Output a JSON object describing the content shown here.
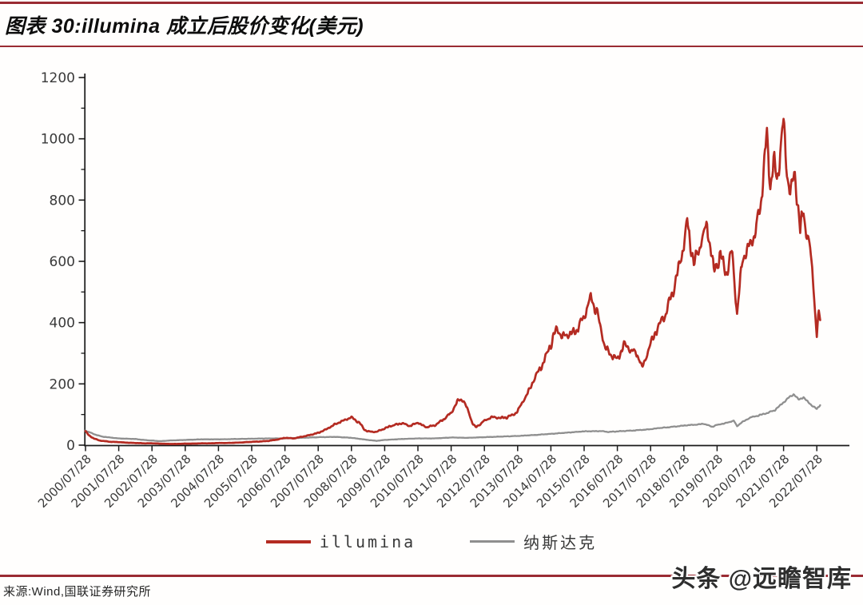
{
  "header": {
    "title": "图表 30:illumina 成立后股价变化(美元)"
  },
  "colors": {
    "accent_rule": "#9a2b33",
    "illumina_line": "#b42b22",
    "nasdaq_line": "#8f8f8f",
    "axis": "#1a1a1a",
    "tick_label": "#3a3a3a"
  },
  "chart_data": {
    "type": "line",
    "title": "图表 30:illumina 成立后股价变化(美元)",
    "xlabel": "",
    "ylabel": "",
    "grid": false,
    "legend_position": "bottom-center",
    "ylim": [
      0,
      1200
    ],
    "yticks": [
      0,
      200,
      400,
      600,
      800,
      1000,
      1200
    ],
    "y_minor_step": 100,
    "x_tick_labels": [
      "2000/07/28",
      "2001/07/28",
      "2002/07/28",
      "2003/07/28",
      "2004/07/28",
      "2005/07/28",
      "2006/07/28",
      "2007/07/28",
      "2008/07/28",
      "2009/07/28",
      "2010/07/28",
      "2011/07/28",
      "2012/07/28",
      "2013/07/28",
      "2014/07/28",
      "2015/07/28",
      "2016/07/28",
      "2017/07/28",
      "2018/07/28",
      "2019/07/28",
      "2020/07/28",
      "2021/07/28",
      "2022/07/28"
    ],
    "x_unit": "years since 2000/07/28",
    "x_range": [
      0,
      22.1
    ],
    "legend": [
      {
        "name": "illumina",
        "color": "#b42b22"
      },
      {
        "name": "纳斯达克",
        "color": "#8f8f8f"
      }
    ],
    "series": [
      {
        "name": "纳斯达克",
        "color": "#8f8f8f",
        "width": 2.3,
        "noise_amp": 0.011,
        "seed": 13,
        "points": [
          [
            0,
            48
          ],
          [
            0.25,
            36
          ],
          [
            0.5,
            28
          ],
          [
            0.75,
            25
          ],
          [
            1,
            22
          ],
          [
            1.5,
            20
          ],
          [
            1.75,
            17
          ],
          [
            2,
            15
          ],
          [
            2.25,
            13
          ],
          [
            2.5,
            15
          ],
          [
            3,
            17
          ],
          [
            3.5,
            19
          ],
          [
            4,
            19
          ],
          [
            4.5,
            20
          ],
          [
            5,
            21
          ],
          [
            5.5,
            22
          ],
          [
            6,
            22
          ],
          [
            6.5,
            24
          ],
          [
            7,
            26
          ],
          [
            7.5,
            27
          ],
          [
            8,
            24
          ],
          [
            8.5,
            17
          ],
          [
            8.75,
            14
          ],
          [
            9,
            17
          ],
          [
            9.5,
            20
          ],
          [
            10,
            22
          ],
          [
            10.5,
            22
          ],
          [
            11,
            25
          ],
          [
            11.5,
            24
          ],
          [
            12,
            26
          ],
          [
            12.5,
            28
          ],
          [
            13,
            30
          ],
          [
            13.5,
            33
          ],
          [
            14,
            37
          ],
          [
            14.5,
            41
          ],
          [
            15,
            45
          ],
          [
            15.5,
            46
          ],
          [
            15.75,
            43
          ],
          [
            16,
            45
          ],
          [
            16.5,
            48
          ],
          [
            17,
            52
          ],
          [
            17.25,
            56
          ],
          [
            17.5,
            58
          ],
          [
            18,
            64
          ],
          [
            18.5,
            68
          ],
          [
            18.6,
            70
          ],
          [
            18.85,
            60
          ],
          [
            19,
            66
          ],
          [
            19.25,
            72
          ],
          [
            19.5,
            80
          ],
          [
            19.6,
            62
          ],
          [
            19.75,
            75
          ],
          [
            20,
            90
          ],
          [
            20.25,
            97
          ],
          [
            20.5,
            105
          ],
          [
            20.75,
            115
          ],
          [
            21,
            140
          ],
          [
            21.15,
            155
          ],
          [
            21.3,
            165
          ],
          [
            21.45,
            150
          ],
          [
            21.6,
            155
          ],
          [
            21.75,
            140
          ],
          [
            21.9,
            125
          ],
          [
            22,
            118
          ],
          [
            22.05,
            126
          ],
          [
            22.1,
            130
          ]
        ]
      },
      {
        "name": "illumina",
        "color": "#b42b22",
        "width": 2.7,
        "noise_amp": 0.024,
        "seed": 7,
        "points": [
          [
            0,
            45
          ],
          [
            0.1,
            32
          ],
          [
            0.25,
            22
          ],
          [
            0.4,
            16
          ],
          [
            0.5,
            14
          ],
          [
            0.75,
            11
          ],
          [
            1,
            10
          ],
          [
            1.25,
            8
          ],
          [
            1.5,
            7
          ],
          [
            1.75,
            6
          ],
          [
            2,
            6
          ],
          [
            2.25,
            5
          ],
          [
            2.5,
            4
          ],
          [
            2.75,
            4
          ],
          [
            3,
            5
          ],
          [
            3.25,
            5
          ],
          [
            3.5,
            6
          ],
          [
            3.75,
            6
          ],
          [
            4,
            7
          ],
          [
            4.25,
            7
          ],
          [
            4.5,
            8
          ],
          [
            4.75,
            9
          ],
          [
            5,
            11
          ],
          [
            5.25,
            12
          ],
          [
            5.5,
            14
          ],
          [
            5.75,
            18
          ],
          [
            6,
            24
          ],
          [
            6.25,
            22
          ],
          [
            6.5,
            27
          ],
          [
            6.75,
            33
          ],
          [
            7,
            40
          ],
          [
            7.25,
            52
          ],
          [
            7.5,
            68
          ],
          [
            7.75,
            80
          ],
          [
            8,
            90
          ],
          [
            8.25,
            72
          ],
          [
            8.4,
            50
          ],
          [
            8.5,
            45
          ],
          [
            8.75,
            43
          ],
          [
            9,
            55
          ],
          [
            9.25,
            65
          ],
          [
            9.5,
            72
          ],
          [
            9.75,
            62
          ],
          [
            10,
            74
          ],
          [
            10.25,
            58
          ],
          [
            10.5,
            64
          ],
          [
            10.75,
            82
          ],
          [
            11,
            105
          ],
          [
            11.2,
            145
          ],
          [
            11.35,
            150
          ],
          [
            11.5,
            115
          ],
          [
            11.65,
            70
          ],
          [
            11.75,
            58
          ],
          [
            12,
            80
          ],
          [
            12.25,
            92
          ],
          [
            12.5,
            88
          ],
          [
            12.75,
            93
          ],
          [
            13,
            110
          ],
          [
            13.25,
            160
          ],
          [
            13.5,
            215
          ],
          [
            13.75,
            265
          ],
          [
            14,
            330
          ],
          [
            14.2,
            385
          ],
          [
            14.35,
            350
          ],
          [
            14.5,
            360
          ],
          [
            14.75,
            375
          ],
          [
            15,
            420
          ],
          [
            15.2,
            478
          ],
          [
            15.4,
            430
          ],
          [
            15.6,
            330
          ],
          [
            15.75,
            300
          ],
          [
            16,
            280
          ],
          [
            16.2,
            330
          ],
          [
            16.4,
            310
          ],
          [
            16.6,
            300
          ],
          [
            16.75,
            250
          ],
          [
            17,
            330
          ],
          [
            17.25,
            390
          ],
          [
            17.5,
            440
          ],
          [
            17.75,
            530
          ],
          [
            18,
            660
          ],
          [
            18.1,
            730
          ],
          [
            18.3,
            590
          ],
          [
            18.5,
            650
          ],
          [
            18.7,
            725
          ],
          [
            18.9,
            565
          ],
          [
            19.1,
            620
          ],
          [
            19.3,
            560
          ],
          [
            19.45,
            640
          ],
          [
            19.6,
            420
          ],
          [
            19.75,
            600
          ],
          [
            20,
            655
          ],
          [
            20.15,
            690
          ],
          [
            20.3,
            780
          ],
          [
            20.5,
            1010
          ],
          [
            20.6,
            850
          ],
          [
            20.7,
            930
          ],
          [
            20.8,
            870
          ],
          [
            21,
            1050
          ],
          [
            21.1,
            900
          ],
          [
            21.2,
            830
          ],
          [
            21.35,
            880
          ],
          [
            21.5,
            700
          ],
          [
            21.6,
            760
          ],
          [
            21.7,
            690
          ],
          [
            21.8,
            640
          ],
          [
            21.9,
            520
          ],
          [
            21.95,
            430
          ],
          [
            22,
            360
          ],
          [
            22.05,
            420
          ],
          [
            22.1,
            405
          ]
        ]
      }
    ]
  },
  "footer": {
    "source": "来源:Wind,国联证券研究所",
    "watermark": "头条 @远瞻智库"
  }
}
